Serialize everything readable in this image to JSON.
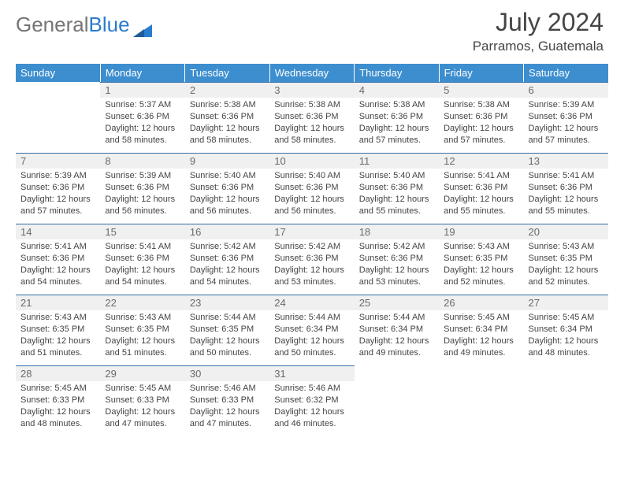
{
  "logo": {
    "text1": "General",
    "text2": "Blue"
  },
  "header": {
    "title": "July 2024",
    "location": "Parramos, Guatemala"
  },
  "colors": {
    "header_bg": "#3d8ecf",
    "header_text": "#ffffff",
    "daynum_bg": "#f0f0f0",
    "daynum_text": "#6a6a6a",
    "cell_border_top": "#356fa6",
    "body_text": "#444444",
    "logo_gray": "#757575",
    "logo_blue": "#2a7ccc",
    "background": "#ffffff"
  },
  "typography": {
    "title_fontsize": 32,
    "subtitle_fontsize": 17,
    "dayheader_fontsize": 13,
    "cell_fontsize": 11
  },
  "daynames": [
    "Sunday",
    "Monday",
    "Tuesday",
    "Wednesday",
    "Thursday",
    "Friday",
    "Saturday"
  ],
  "weeks": [
    [
      {
        "empty": true
      },
      {
        "num": "1",
        "sunrise": "Sunrise: 5:37 AM",
        "sunset": "Sunset: 6:36 PM",
        "daylight": "Daylight: 12 hours and 58 minutes."
      },
      {
        "num": "2",
        "sunrise": "Sunrise: 5:38 AM",
        "sunset": "Sunset: 6:36 PM",
        "daylight": "Daylight: 12 hours and 58 minutes."
      },
      {
        "num": "3",
        "sunrise": "Sunrise: 5:38 AM",
        "sunset": "Sunset: 6:36 PM",
        "daylight": "Daylight: 12 hours and 58 minutes."
      },
      {
        "num": "4",
        "sunrise": "Sunrise: 5:38 AM",
        "sunset": "Sunset: 6:36 PM",
        "daylight": "Daylight: 12 hours and 57 minutes."
      },
      {
        "num": "5",
        "sunrise": "Sunrise: 5:38 AM",
        "sunset": "Sunset: 6:36 PM",
        "daylight": "Daylight: 12 hours and 57 minutes."
      },
      {
        "num": "6",
        "sunrise": "Sunrise: 5:39 AM",
        "sunset": "Sunset: 6:36 PM",
        "daylight": "Daylight: 12 hours and 57 minutes."
      }
    ],
    [
      {
        "num": "7",
        "sunrise": "Sunrise: 5:39 AM",
        "sunset": "Sunset: 6:36 PM",
        "daylight": "Daylight: 12 hours and 57 minutes."
      },
      {
        "num": "8",
        "sunrise": "Sunrise: 5:39 AM",
        "sunset": "Sunset: 6:36 PM",
        "daylight": "Daylight: 12 hours and 56 minutes."
      },
      {
        "num": "9",
        "sunrise": "Sunrise: 5:40 AM",
        "sunset": "Sunset: 6:36 PM",
        "daylight": "Daylight: 12 hours and 56 minutes."
      },
      {
        "num": "10",
        "sunrise": "Sunrise: 5:40 AM",
        "sunset": "Sunset: 6:36 PM",
        "daylight": "Daylight: 12 hours and 56 minutes."
      },
      {
        "num": "11",
        "sunrise": "Sunrise: 5:40 AM",
        "sunset": "Sunset: 6:36 PM",
        "daylight": "Daylight: 12 hours and 55 minutes."
      },
      {
        "num": "12",
        "sunrise": "Sunrise: 5:41 AM",
        "sunset": "Sunset: 6:36 PM",
        "daylight": "Daylight: 12 hours and 55 minutes."
      },
      {
        "num": "13",
        "sunrise": "Sunrise: 5:41 AM",
        "sunset": "Sunset: 6:36 PM",
        "daylight": "Daylight: 12 hours and 55 minutes."
      }
    ],
    [
      {
        "num": "14",
        "sunrise": "Sunrise: 5:41 AM",
        "sunset": "Sunset: 6:36 PM",
        "daylight": "Daylight: 12 hours and 54 minutes."
      },
      {
        "num": "15",
        "sunrise": "Sunrise: 5:41 AM",
        "sunset": "Sunset: 6:36 PM",
        "daylight": "Daylight: 12 hours and 54 minutes."
      },
      {
        "num": "16",
        "sunrise": "Sunrise: 5:42 AM",
        "sunset": "Sunset: 6:36 PM",
        "daylight": "Daylight: 12 hours and 54 minutes."
      },
      {
        "num": "17",
        "sunrise": "Sunrise: 5:42 AM",
        "sunset": "Sunset: 6:36 PM",
        "daylight": "Daylight: 12 hours and 53 minutes."
      },
      {
        "num": "18",
        "sunrise": "Sunrise: 5:42 AM",
        "sunset": "Sunset: 6:36 PM",
        "daylight": "Daylight: 12 hours and 53 minutes."
      },
      {
        "num": "19",
        "sunrise": "Sunrise: 5:43 AM",
        "sunset": "Sunset: 6:35 PM",
        "daylight": "Daylight: 12 hours and 52 minutes."
      },
      {
        "num": "20",
        "sunrise": "Sunrise: 5:43 AM",
        "sunset": "Sunset: 6:35 PM",
        "daylight": "Daylight: 12 hours and 52 minutes."
      }
    ],
    [
      {
        "num": "21",
        "sunrise": "Sunrise: 5:43 AM",
        "sunset": "Sunset: 6:35 PM",
        "daylight": "Daylight: 12 hours and 51 minutes."
      },
      {
        "num": "22",
        "sunrise": "Sunrise: 5:43 AM",
        "sunset": "Sunset: 6:35 PM",
        "daylight": "Daylight: 12 hours and 51 minutes."
      },
      {
        "num": "23",
        "sunrise": "Sunrise: 5:44 AM",
        "sunset": "Sunset: 6:35 PM",
        "daylight": "Daylight: 12 hours and 50 minutes."
      },
      {
        "num": "24",
        "sunrise": "Sunrise: 5:44 AM",
        "sunset": "Sunset: 6:34 PM",
        "daylight": "Daylight: 12 hours and 50 minutes."
      },
      {
        "num": "25",
        "sunrise": "Sunrise: 5:44 AM",
        "sunset": "Sunset: 6:34 PM",
        "daylight": "Daylight: 12 hours and 49 minutes."
      },
      {
        "num": "26",
        "sunrise": "Sunrise: 5:45 AM",
        "sunset": "Sunset: 6:34 PM",
        "daylight": "Daylight: 12 hours and 49 minutes."
      },
      {
        "num": "27",
        "sunrise": "Sunrise: 5:45 AM",
        "sunset": "Sunset: 6:34 PM",
        "daylight": "Daylight: 12 hours and 48 minutes."
      }
    ],
    [
      {
        "num": "28",
        "sunrise": "Sunrise: 5:45 AM",
        "sunset": "Sunset: 6:33 PM",
        "daylight": "Daylight: 12 hours and 48 minutes."
      },
      {
        "num": "29",
        "sunrise": "Sunrise: 5:45 AM",
        "sunset": "Sunset: 6:33 PM",
        "daylight": "Daylight: 12 hours and 47 minutes."
      },
      {
        "num": "30",
        "sunrise": "Sunrise: 5:46 AM",
        "sunset": "Sunset: 6:33 PM",
        "daylight": "Daylight: 12 hours and 47 minutes."
      },
      {
        "num": "31",
        "sunrise": "Sunrise: 5:46 AM",
        "sunset": "Sunset: 6:32 PM",
        "daylight": "Daylight: 12 hours and 46 minutes."
      },
      {
        "empty": true
      },
      {
        "empty": true
      },
      {
        "empty": true
      }
    ]
  ]
}
